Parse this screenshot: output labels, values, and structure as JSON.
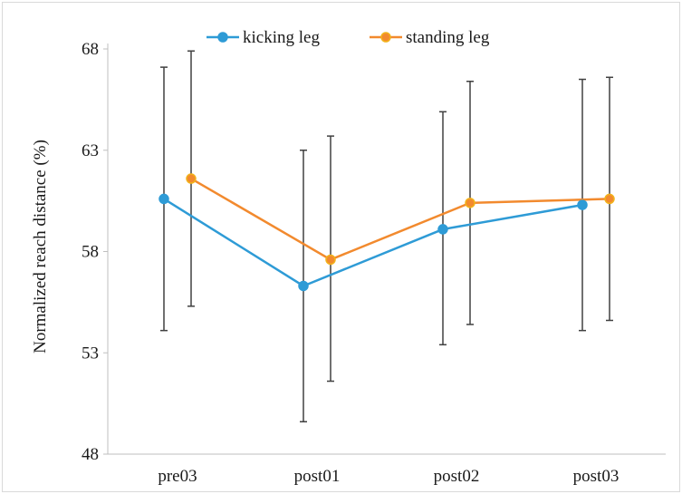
{
  "chart_data": {
    "type": "line",
    "title": "",
    "xlabel": "",
    "ylabel": "Normalized reach distance (%)",
    "categories": [
      "pre03",
      "post01",
      "post02",
      "post03"
    ],
    "ylim": [
      48,
      68
    ],
    "yticks": [
      48,
      53,
      58,
      63,
      68
    ],
    "grid": false,
    "legend": "top-center",
    "series": [
      {
        "name": "kicking leg",
        "color": "#2e9bd6",
        "values": [
          60.6,
          56.3,
          59.1,
          60.3
        ],
        "error_low": [
          54.1,
          49.6,
          53.4,
          54.1
        ],
        "error_high": [
          67.1,
          63.0,
          64.9,
          66.5
        ]
      },
      {
        "name": "standing leg",
        "color": "#f28a2e",
        "values": [
          61.6,
          57.6,
          60.4,
          60.6
        ],
        "error_low": [
          55.3,
          51.6,
          54.4,
          54.6
        ],
        "error_high": [
          67.9,
          63.7,
          66.4,
          66.6
        ]
      }
    ]
  }
}
